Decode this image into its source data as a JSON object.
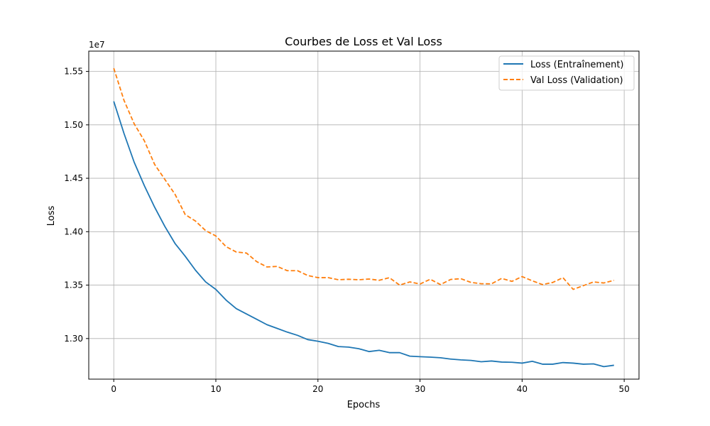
{
  "chart_data": {
    "type": "line",
    "title": "Courbes de Loss et Val Loss",
    "xlabel": "Epochs",
    "ylabel": "Loss",
    "offset_text": "1e7",
    "y_scale": 10000000,
    "xlim": [
      -2.45,
      51.45
    ],
    "ylim": [
      12620000,
      15690000
    ],
    "xticks": [
      0,
      10,
      20,
      30,
      40,
      50
    ],
    "xtick_labels": [
      "0",
      "10",
      "20",
      "30",
      "40",
      "50"
    ],
    "yticks": [
      13000000,
      13500000,
      14000000,
      14500000,
      15000000,
      15500000
    ],
    "ytick_labels": [
      "1.30",
      "1.35",
      "1.40",
      "1.45",
      "1.50",
      "1.55"
    ],
    "grid": true,
    "legend_position": "top-right",
    "x": [
      0,
      1,
      2,
      3,
      4,
      5,
      6,
      7,
      8,
      9,
      10,
      11,
      12,
      13,
      14,
      15,
      16,
      17,
      18,
      19,
      20,
      21,
      22,
      23,
      24,
      25,
      26,
      27,
      28,
      29,
      30,
      31,
      32,
      33,
      34,
      35,
      36,
      37,
      38,
      39,
      40,
      41,
      42,
      43,
      44,
      45,
      46,
      47,
      48,
      49
    ],
    "series": [
      {
        "name": "Loss (Entraînement)",
        "color": "#1f77b4",
        "style": "solid",
        "values": [
          15220000,
          14920000,
          14650000,
          14430000,
          14230000,
          14050000,
          13890000,
          13770000,
          13640000,
          13530000,
          13460000,
          13360000,
          13280000,
          13230000,
          13180000,
          13130000,
          13095000,
          13060000,
          13030000,
          12990000,
          12975000,
          12955000,
          12925000,
          12920000,
          12905000,
          12878000,
          12890000,
          12868000,
          12868000,
          12835000,
          12830000,
          12826000,
          12820000,
          12808000,
          12800000,
          12795000,
          12783000,
          12790000,
          12780000,
          12778000,
          12770000,
          12787000,
          12760000,
          12760000,
          12775000,
          12770000,
          12760000,
          12763000,
          12737000,
          12750000
        ]
      },
      {
        "name": "Val Loss (Validation)",
        "color": "#ff7f0e",
        "style": "dashed",
        "values": [
          15530000,
          15230000,
          15010000,
          14850000,
          14630000,
          14490000,
          14350000,
          14160000,
          14100000,
          14010000,
          13960000,
          13860000,
          13810000,
          13800000,
          13720000,
          13670000,
          13675000,
          13635000,
          13635000,
          13590000,
          13570000,
          13570000,
          13550000,
          13555000,
          13550000,
          13557000,
          13545000,
          13570000,
          13500000,
          13530000,
          13510000,
          13555000,
          13505000,
          13553000,
          13560000,
          13525000,
          13513000,
          13512000,
          13563000,
          13535000,
          13580000,
          13540000,
          13505000,
          13525000,
          13570000,
          13460000,
          13495000,
          13530000,
          13520000,
          13545000
        ]
      }
    ]
  }
}
